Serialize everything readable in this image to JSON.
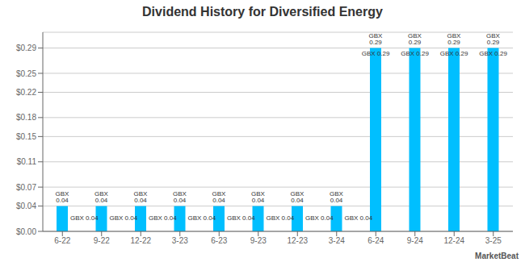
{
  "chart_data": {
    "type": "bar",
    "title": "Dividend History for Diversified Energy",
    "categories": [
      "6-22",
      "9-22",
      "12-22",
      "3-23",
      "6-23",
      "9-23",
      "12-23",
      "3-24",
      "6-24",
      "9-24",
      "12-24",
      "3-25"
    ],
    "values": [
      0.04,
      0.04,
      0.04,
      0.04,
      0.04,
      0.04,
      0.04,
      0.04,
      0.29,
      0.29,
      0.29,
      0.29
    ],
    "value_labels": [
      "GBX 0.04",
      "GBX 0.04",
      "GBX 0.04",
      "GBX 0.04",
      "GBX 0.04",
      "GBX 0.04",
      "GBX 0.04",
      "GBX 0.04",
      "GBX 0.29",
      "GBX 0.29",
      "GBX 0.29",
      "GBX 0.29"
    ],
    "data_labels": true,
    "color": "#00bfff",
    "ylim": [
      0.0,
      0.315
    ],
    "yticks": [
      {
        "value": 0.0,
        "label": "$0.00"
      },
      {
        "value": 0.04,
        "label": "$0.04"
      },
      {
        "value": 0.07,
        "label": "$0.07"
      },
      {
        "value": 0.11,
        "label": "$0.11"
      },
      {
        "value": 0.15,
        "label": "$0.15"
      },
      {
        "value": 0.18,
        "label": "$0.18"
      },
      {
        "value": 0.22,
        "label": "$0.22"
      },
      {
        "value": 0.25,
        "label": "$0.25"
      },
      {
        "value": 0.29,
        "label": "$0.29"
      }
    ],
    "grid": true,
    "annotations": [
      "MarketBeat"
    ]
  }
}
